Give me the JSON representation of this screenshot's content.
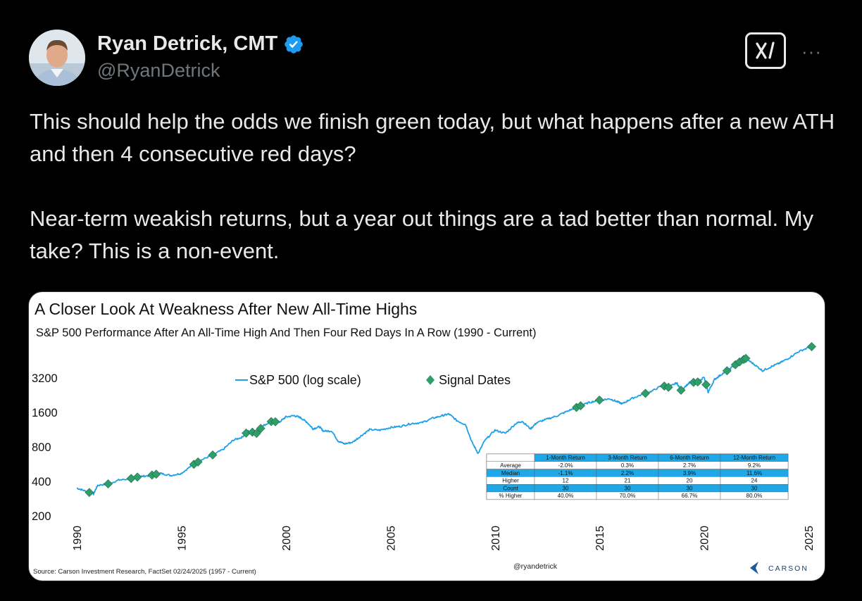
{
  "author": {
    "display_name": "Ryan Detrick, CMT",
    "handle": "@RyanDetrick",
    "verified_icon": "verified-badge-icon",
    "avatar_icon": "avatar"
  },
  "header_actions": {
    "grok_icon": "grok-icon",
    "more_label": "···"
  },
  "tweet": {
    "paragraph_1": "This should help the odds we finish green today, but what happens after a new ATH and then 4 consecutive red days?",
    "paragraph_2": "Near-term weakish returns, but a year out things are a tad better than normal. My take? This is a non-event."
  },
  "colors": {
    "background": "#000000",
    "text": "#e7e9ea",
    "muted": "#71767b",
    "verified": "#1d9bf0",
    "line": "#1ea0e8",
    "signal": "#2e9e6a",
    "table_header": "#1ea8e8"
  },
  "chart_data": {
    "type": "line",
    "title": "A Closer Look At Weakness After New All-Time Highs",
    "subtitle": "S&P 500 Performance After An All-Time High And Then Four Red Days In A Row (1990 - Current)",
    "y_scale": "log",
    "ylim": [
      200,
      6400
    ],
    "y_ticks": [
      "3200",
      "1600",
      "800",
      "400",
      "200"
    ],
    "xlim": [
      1990,
      2025.3
    ],
    "x_ticks": [
      "1990",
      "1995",
      "2000",
      "2005",
      "2010",
      "2015",
      "2020",
      "2025"
    ],
    "legend": {
      "line_label": "S&P 500 (log scale)",
      "marker_label": "Signal Dates",
      "placement": "top-left"
    },
    "series": [
      {
        "name": "S&P 500 (log scale)",
        "x": [
          1990.0,
          1990.4,
          1990.8,
          1991.0,
          1991.5,
          1992.0,
          1992.5,
          1993.0,
          1993.5,
          1994.0,
          1994.5,
          1995.0,
          1995.5,
          1996.0,
          1996.5,
          1997.0,
          1997.5,
          1997.9,
          1998.2,
          1998.6,
          1998.9,
          1999.3,
          1999.7,
          2000.0,
          2000.4,
          2000.7,
          2001.0,
          2001.3,
          2001.6,
          2001.8,
          2002.2,
          2002.5,
          2002.8,
          2003.2,
          2003.6,
          2004.0,
          2004.5,
          2005.0,
          2005.5,
          2006.0,
          2006.5,
          2007.0,
          2007.5,
          2007.8,
          2008.2,
          2008.6,
          2008.9,
          2009.2,
          2009.5,
          2010.0,
          2010.5,
          2011.0,
          2011.3,
          2011.7,
          2012.0,
          2012.5,
          2013.0,
          2013.5,
          2014.0,
          2014.5,
          2015.0,
          2015.5,
          2015.8,
          2016.1,
          2016.5,
          2017.0,
          2017.5,
          2018.0,
          2018.3,
          2018.7,
          2018.9,
          2019.3,
          2019.7,
          2020.0,
          2020.2,
          2020.5,
          2020.8,
          2021.2,
          2021.6,
          2021.99,
          2022.4,
          2022.8,
          2023.2,
          2023.6,
          2024.0,
          2024.5,
          2025.0,
          2025.15
        ],
        "y": [
          350,
          330,
          310,
          370,
          380,
          410,
          420,
          440,
          450,
          470,
          450,
          470,
          550,
          620,
          680,
          760,
          920,
          970,
          1100,
          1050,
          1220,
          1330,
          1320,
          1460,
          1500,
          1440,
          1320,
          1150,
          1200,
          1100,
          1100,
          900,
          850,
          880,
          1000,
          1130,
          1120,
          1180,
          1210,
          1280,
          1300,
          1420,
          1500,
          1550,
          1350,
          1250,
          880,
          700,
          900,
          1120,
          1050,
          1280,
          1340,
          1150,
          1300,
          1400,
          1500,
          1650,
          1800,
          1950,
          2050,
          2100,
          2000,
          1900,
          2100,
          2280,
          2450,
          2750,
          2650,
          2900,
          2500,
          2900,
          2950,
          3250,
          2400,
          3100,
          3400,
          3800,
          4300,
          4750,
          4200,
          3700,
          4000,
          4300,
          4700,
          5400,
          5900,
          6000
        ]
      }
    ],
    "signal_dates": [
      1990.6,
      1991.5,
      1992.6,
      1992.9,
      1993.6,
      1993.8,
      1995.6,
      1995.8,
      1996.5,
      1998.1,
      1998.4,
      1998.6,
      1998.8,
      1999.3,
      1999.5,
      2013.9,
      2014.1,
      2015.0,
      2017.2,
      2018.1,
      2018.3,
      2018.9,
      2019.5,
      2019.7,
      2020.1,
      2021.1,
      2021.5,
      2021.7,
      2021.9,
      2022.0,
      2025.15
    ],
    "table": {
      "columns": [
        "",
        "1-Month Return",
        "3-Month Return",
        "6-Month Return",
        "12-Month Return"
      ],
      "rows": [
        [
          "Average",
          "-2.0%",
          "0.3%",
          "2.7%",
          "9.2%"
        ],
        [
          "Median",
          "-1.1%",
          "2.2%",
          "3.9%",
          "11.6%"
        ],
        [
          "Higher",
          "12",
          "21",
          "20",
          "24"
        ],
        [
          "Count",
          "30",
          "30",
          "30",
          "30"
        ],
        [
          "% Higher",
          "40.0%",
          "70.0%",
          "66.7%",
          "80.0%"
        ]
      ],
      "highlighted_rows": [
        1,
        3
      ]
    },
    "source": "Source: Carson Investment Research, FactSet 02/24/2025 (1957 - Current)",
    "watermark": "@ryandetrick",
    "brand": "CARSON",
    "grid": false
  }
}
